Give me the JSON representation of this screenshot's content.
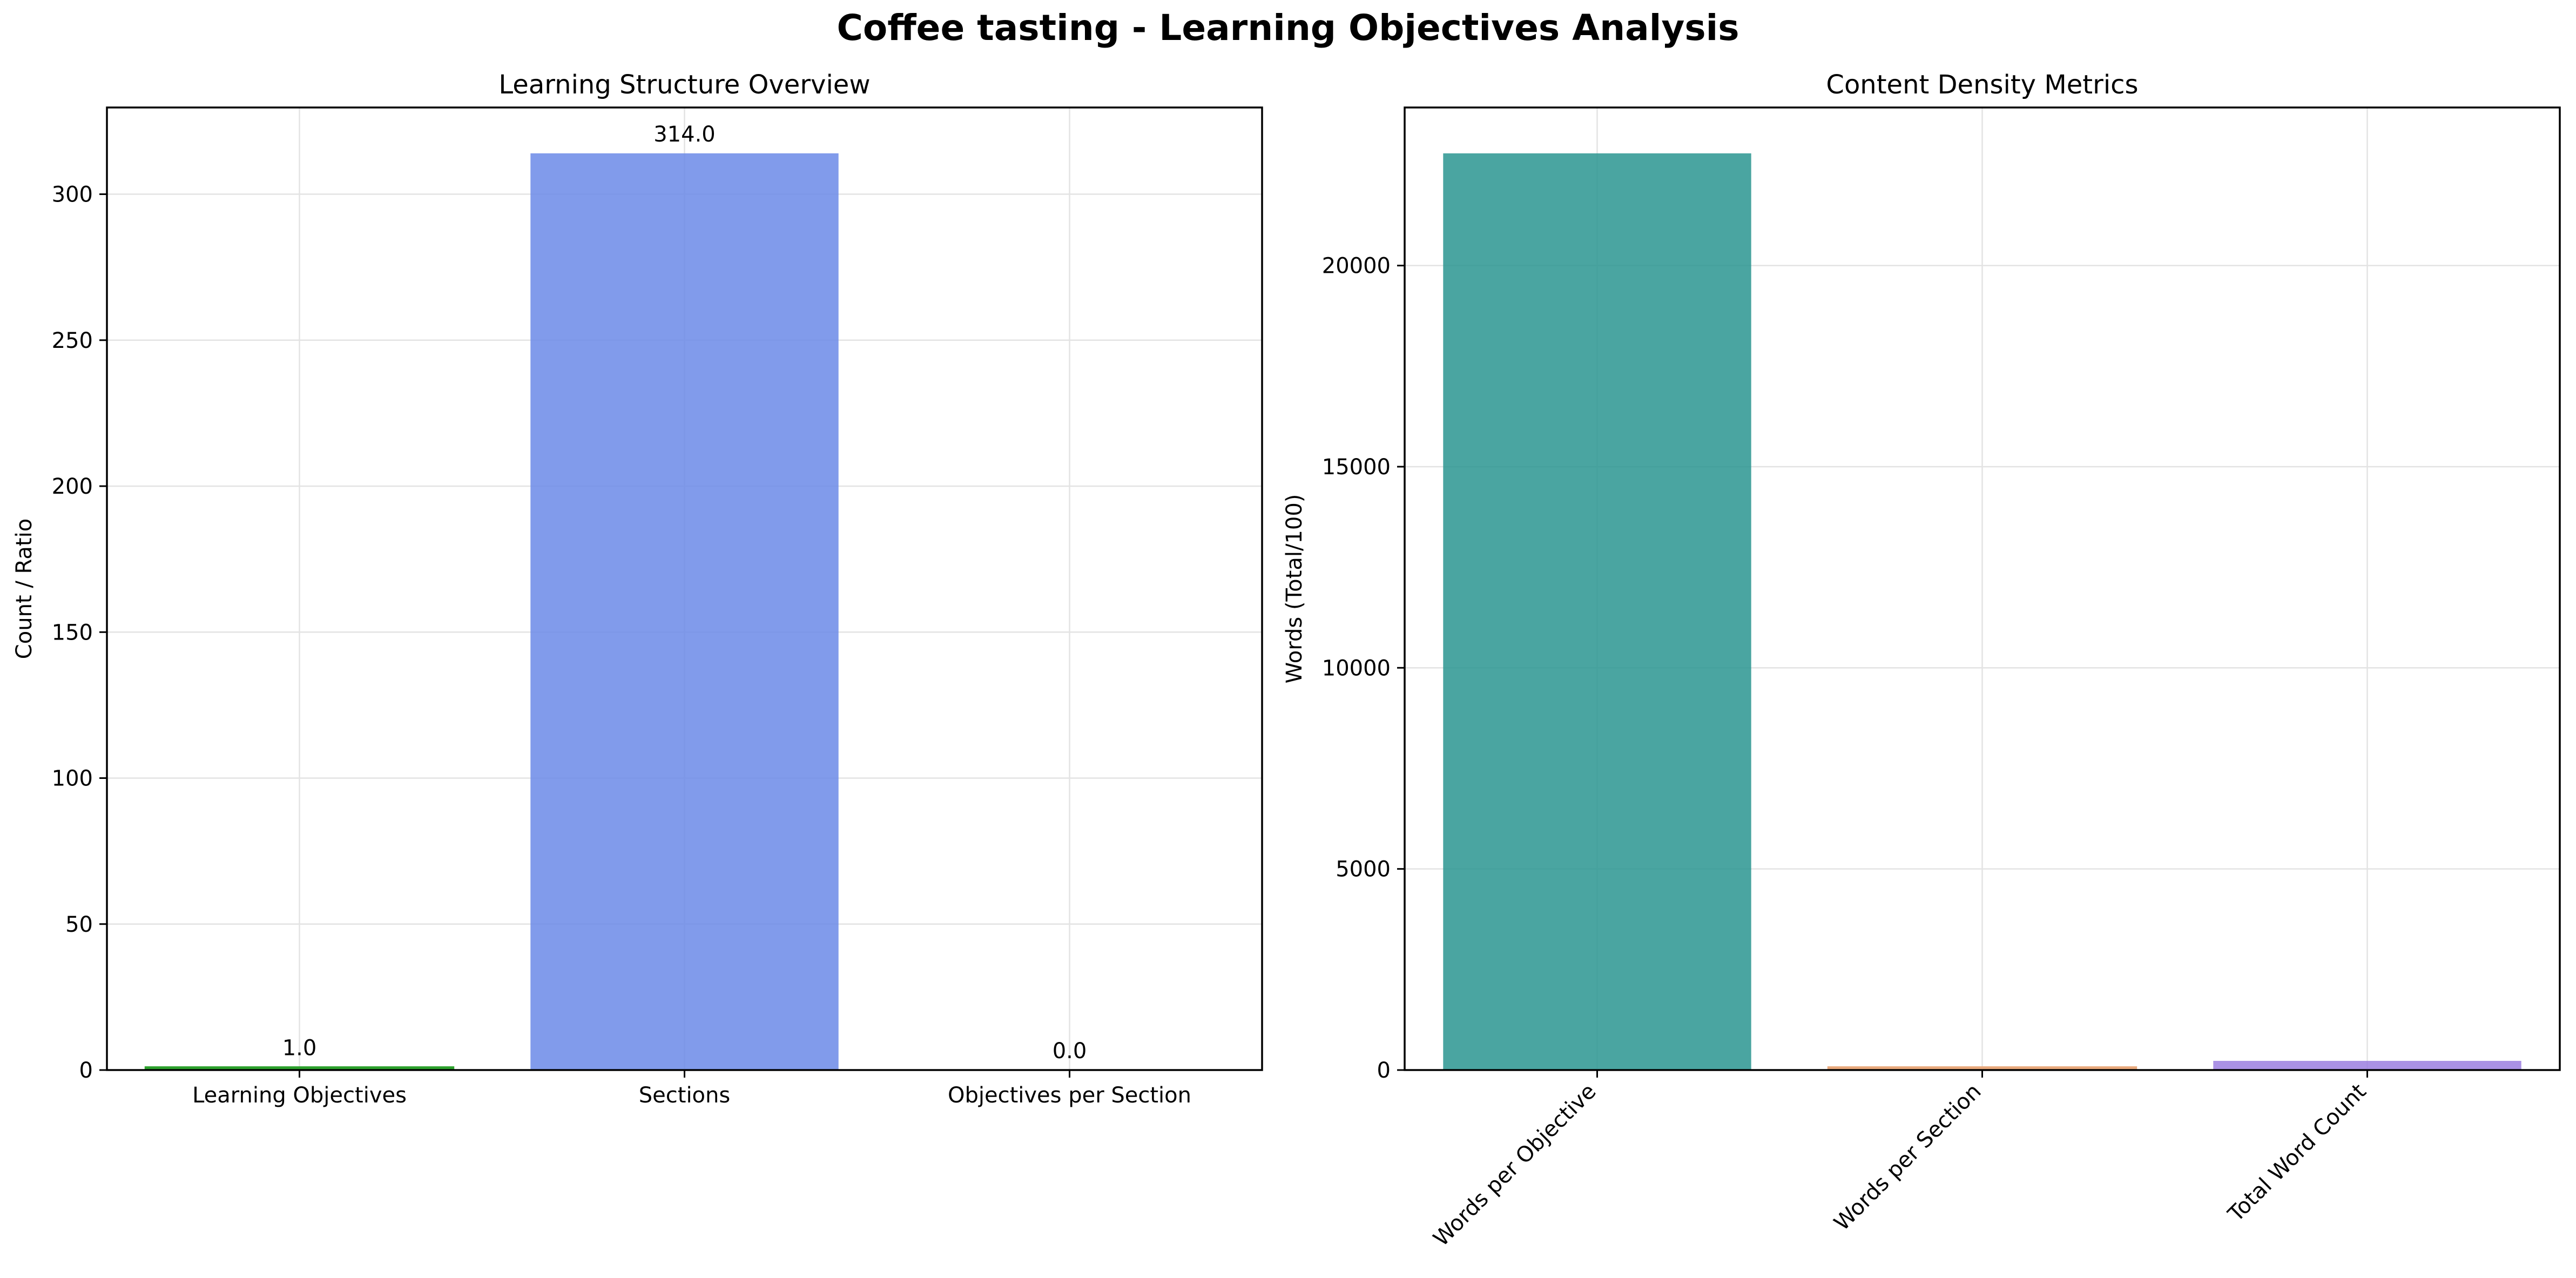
{
  "figure": {
    "suptitle": "Coffee tasting - Learning Objectives Analysis"
  },
  "chart_data": [
    {
      "type": "bar",
      "title": "Learning Structure Overview",
      "xlabel": "",
      "ylabel": "Count / Ratio",
      "categories": [
        "Learning Objectives",
        "Sections",
        "Objectives per Section"
      ],
      "values": [
        1.0,
        314.0,
        0.0
      ],
      "value_labels": [
        "1.0",
        "314.0",
        "0.0"
      ],
      "colors": [
        "#2ca02c",
        "#6b8ae8",
        "#ff7f0e"
      ],
      "ylim": [
        0,
        329.7
      ],
      "yticks": [
        0,
        50,
        100,
        150,
        200,
        250,
        300
      ],
      "ytick_labels": [
        "0",
        "50",
        "100",
        "150",
        "200",
        "250",
        "300"
      ],
      "grid": true,
      "xtick_rotation": 0
    },
    {
      "type": "bar",
      "title": "Content Density Metrics",
      "xlabel": "",
      "ylabel": "Words (Total/100)",
      "categories": [
        "Words per Objective",
        "Words per Section",
        "Total Word Count"
      ],
      "values": [
        22790,
        72.6,
        227.9
      ],
      "colors": [
        "#2a9590",
        "#e8a87c",
        "#9b7ee0"
      ],
      "ylim": [
        0,
        23930
      ],
      "yticks": [
        0,
        5000,
        10000,
        15000,
        20000
      ],
      "ytick_labels": [
        "0",
        "5000",
        "10000",
        "15000",
        "20000"
      ],
      "grid": true,
      "xtick_rotation": -45
    }
  ]
}
